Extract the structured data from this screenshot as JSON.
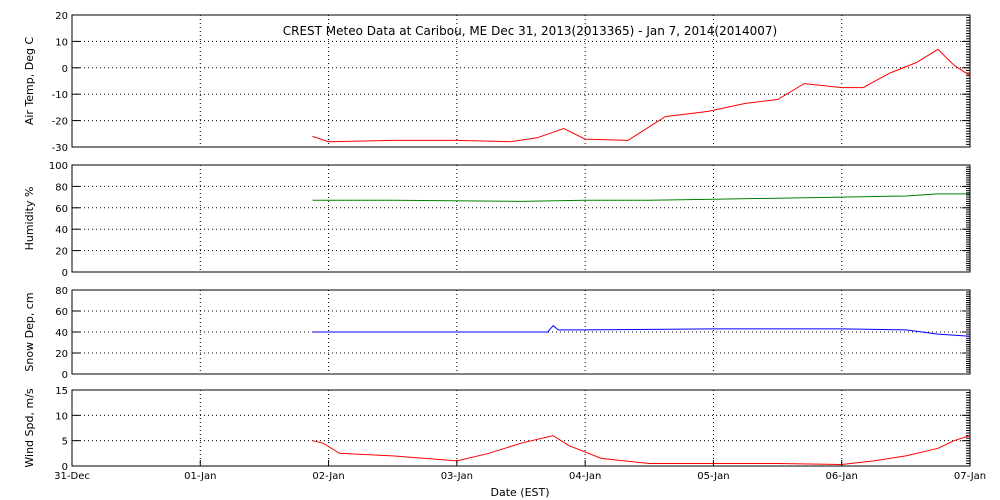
{
  "chart_data": {
    "type": "line",
    "title": "CREST Meteo Data at Caribou, ME   Dec 31, 2013(2013365) - Jan  7, 2014(2014007)",
    "xlabel": "Date (EST)",
    "x_ticks": [
      "31-Dec",
      "01-Jan",
      "02-Jan",
      "03-Jan",
      "04-Jan",
      "05-Jan",
      "06-Jan",
      "07-Jan"
    ],
    "xlim": [
      "2013-12-31",
      "2014-01-07"
    ],
    "grid": true,
    "panels": [
      {
        "ylabel": "Air Temp, Deg C",
        "ylim": [
          -30,
          20
        ],
        "yticks": [
          "20",
          "10",
          "0",
          "-10",
          "-20",
          "-30"
        ],
        "color": "#ff0000",
        "series": {
          "x": [
            "2014-01-01T21:00",
            "2014-01-02T00:00",
            "2014-01-02T12:00",
            "2014-01-03T00:00",
            "2014-01-03T10:00",
            "2014-01-03T15:00",
            "2014-01-03T20:00",
            "2014-01-04T00:00",
            "2014-01-04T08:00",
            "2014-01-04T15:00",
            "2014-01-04T23:00",
            "2014-01-05T06:00",
            "2014-01-05T12:00",
            "2014-01-05T17:00",
            "2014-01-06T00:00",
            "2014-01-06T04:00",
            "2014-01-06T09:00",
            "2014-01-06T14:00",
            "2014-01-06T18:00",
            "2014-01-06T21:00",
            "2014-01-07T00:00"
          ],
          "values": [
            -26,
            -28,
            -27.5,
            -27.5,
            -28,
            -26.5,
            -23,
            -27,
            -27.5,
            -18.5,
            -16.5,
            -13.5,
            -12,
            -6,
            -7.5,
            -7.5,
            -2,
            2,
            7,
            1,
            -3
          ]
        }
      },
      {
        "ylabel": "Humidity %",
        "ylim": [
          0,
          100
        ],
        "yticks": [
          "100",
          "80",
          "60",
          "40",
          "20",
          "0"
        ],
        "color": "#008000",
        "series": {
          "x": [
            "2014-01-01T21:00",
            "2014-01-02T12:00",
            "2014-01-03T12:00",
            "2014-01-04T00:00",
            "2014-01-04T12:00",
            "2014-01-05T00:00",
            "2014-01-05T12:00",
            "2014-01-06T00:00",
            "2014-01-06T12:00",
            "2014-01-06T18:00",
            "2014-01-07T00:00"
          ],
          "values": [
            67,
            67,
            66,
            67,
            67,
            68,
            69,
            70,
            71,
            73,
            73
          ]
        }
      },
      {
        "ylabel": "Snow Dep, cm",
        "ylim": [
          0,
          80
        ],
        "yticks": [
          "80",
          "60",
          "40",
          "20",
          "0"
        ],
        "color": "#0000ff",
        "series": {
          "x": [
            "2014-01-01T21:00",
            "2014-01-02T12:00",
            "2014-01-03T12:00",
            "2014-01-03T17:00",
            "2014-01-03T18:00",
            "2014-01-03T19:00",
            "2014-01-04T00:00",
            "2014-01-05T00:00",
            "2014-01-06T00:00",
            "2014-01-06T12:00",
            "2014-01-06T18:00",
            "2014-01-07T00:00"
          ],
          "values": [
            40,
            40,
            40,
            40,
            46,
            42,
            42,
            43,
            43,
            42,
            38,
            36
          ]
        }
      },
      {
        "ylabel": "Wind Spd, m/s",
        "ylim": [
          0,
          15
        ],
        "yticks": [
          "15",
          "10",
          "5",
          "0"
        ],
        "color": "#ff0000",
        "series": {
          "x": [
            "2014-01-01T21:00",
            "2014-01-01T23:00",
            "2014-01-02T02:00",
            "2014-01-02T12:00",
            "2014-01-03T00:00",
            "2014-01-03T06:00",
            "2014-01-03T12:00",
            "2014-01-03T18:00",
            "2014-01-03T21:00",
            "2014-01-04T03:00",
            "2014-01-04T12:00",
            "2014-01-05T00:00",
            "2014-01-05T12:00",
            "2014-01-06T00:00",
            "2014-01-06T06:00",
            "2014-01-06T12:00",
            "2014-01-06T18:00",
            "2014-01-06T21:00",
            "2014-01-07T00:00"
          ],
          "values": [
            5,
            4.5,
            2.5,
            2,
            1,
            2.5,
            4.5,
            6,
            4,
            1.5,
            0.5,
            0.5,
            0.5,
            0.3,
            1,
            2,
            3.5,
            5,
            6
          ]
        }
      }
    ]
  }
}
